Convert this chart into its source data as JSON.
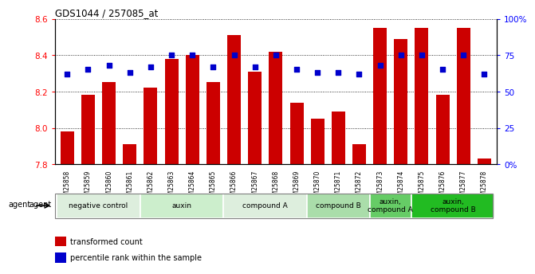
{
  "title": "GDS1044 / 257085_at",
  "samples": [
    "GSM25858",
    "GSM25859",
    "GSM25860",
    "GSM25861",
    "GSM25862",
    "GSM25863",
    "GSM25864",
    "GSM25865",
    "GSM25866",
    "GSM25867",
    "GSM25868",
    "GSM25869",
    "GSM25870",
    "GSM25871",
    "GSM25872",
    "GSM25873",
    "GSM25874",
    "GSM25875",
    "GSM25876",
    "GSM25877",
    "GSM25878"
  ],
  "bar_values": [
    7.98,
    8.18,
    8.25,
    7.91,
    8.22,
    8.38,
    8.4,
    8.25,
    8.51,
    8.31,
    8.42,
    8.14,
    8.05,
    8.09,
    7.91,
    8.55,
    8.49,
    8.55,
    8.18,
    8.55,
    7.83
  ],
  "dot_values": [
    62,
    65,
    68,
    63,
    67,
    75,
    75,
    67,
    75,
    67,
    75,
    65,
    63,
    63,
    62,
    68,
    75,
    75,
    65,
    75,
    62
  ],
  "ylim_left": [
    7.8,
    8.6
  ],
  "ylim_right": [
    0,
    100
  ],
  "bar_color": "#cc0000",
  "dot_color": "#0000cc",
  "yticks_left": [
    7.8,
    8.0,
    8.2,
    8.4,
    8.6
  ],
  "ytick_labels_right": [
    "0%",
    "25",
    "50",
    "75",
    "100%"
  ],
  "yticks_right": [
    0,
    25,
    50,
    75,
    100
  ],
  "groups": [
    {
      "label": "negative control",
      "start": 0,
      "end": 3,
      "color": "#ddeedd"
    },
    {
      "label": "auxin",
      "start": 4,
      "end": 7,
      "color": "#cceecc"
    },
    {
      "label": "compound A",
      "start": 8,
      "end": 11,
      "color": "#ddeedd"
    },
    {
      "label": "compound B",
      "start": 12,
      "end": 14,
      "color": "#aaddaa"
    },
    {
      "label": "auxin,\ncompound A",
      "start": 15,
      "end": 16,
      "color": "#66cc66"
    },
    {
      "label": "auxin,\ncompound B",
      "start": 17,
      "end": 20,
      "color": "#22bb22"
    }
  ],
  "legend_items": [
    {
      "label": "transformed count",
      "color": "#cc0000",
      "marker": "s"
    },
    {
      "label": "percentile rank within the sample",
      "color": "#0000cc",
      "marker": "s"
    }
  ],
  "bar_baseline": 7.8
}
